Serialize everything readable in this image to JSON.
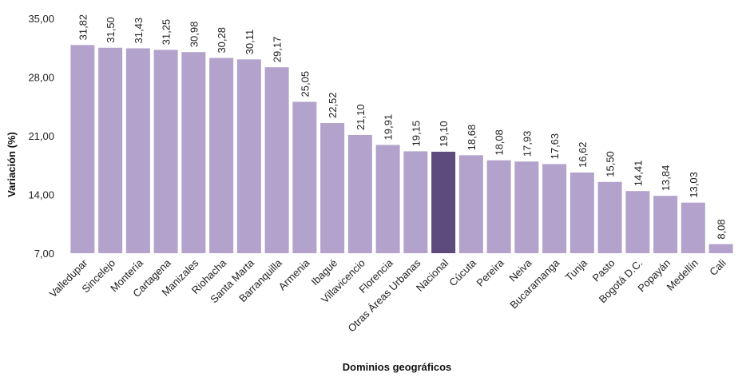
{
  "chart_data": {
    "type": "bar",
    "title": "",
    "xlabel": "Dominios geográficos",
    "ylabel": "Variación (%)",
    "ylim": [
      7,
      35
    ],
    "yticks": [
      7,
      14,
      21,
      28,
      35
    ],
    "ytick_labels": [
      "7,00",
      "14,00",
      "21,00",
      "28,00",
      "35,00"
    ],
    "categories": [
      "Valledupar",
      "Sincelejo",
      "Montería",
      "Cartagena",
      "Manizales",
      "Riohacha",
      "Santa Marta",
      "Barranquilla",
      "Armenia",
      "Ibagué",
      "Villavicencio",
      "Florencia",
      "Otras Áreas Urbanas",
      "Nacional",
      "Cúcuta",
      "Pereira",
      "Neiva",
      "Bucaramanga",
      "Tunja",
      "Pasto",
      "Bogotá D.C.",
      "Popayán",
      "Medellín",
      "Cali"
    ],
    "values": [
      31.82,
      31.5,
      31.43,
      31.25,
      30.98,
      30.28,
      30.11,
      29.17,
      25.05,
      22.52,
      21.1,
      19.91,
      19.15,
      19.1,
      18.68,
      18.08,
      17.93,
      17.63,
      16.62,
      15.5,
      14.41,
      13.84,
      13.03,
      8.08
    ],
    "value_labels": [
      "31,82",
      "31,50",
      "31,43",
      "31,25",
      "30,98",
      "30,28",
      "30,11",
      "29,17",
      "25,05",
      "22,52",
      "21,10",
      "19,91",
      "19,15",
      "19,10",
      "18,68",
      "18,08",
      "17,93",
      "17,63",
      "16,62",
      "15,50",
      "14,41",
      "13,84",
      "13,03",
      "8,08"
    ],
    "highlight": "Nacional",
    "colors": {
      "bar": "#b3a2cb",
      "highlight": "#5e4b7e"
    },
    "grid": false,
    "legend": "none"
  }
}
